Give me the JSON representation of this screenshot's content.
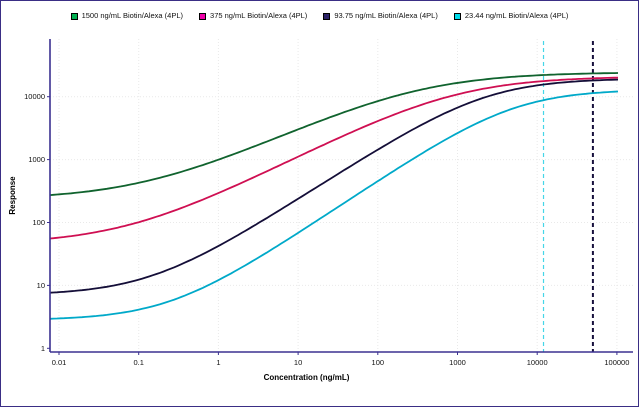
{
  "page": {
    "background": "#ffffff",
    "border_color": "#3a2e85",
    "axis_color": "#3b3191",
    "grid_color": "#e9e9e9",
    "tick_text_color": "#111111"
  },
  "legend": {
    "items": [
      {
        "label": "1500 ng/mL Biotin/Alexa (4PL)",
        "marker_color": "#00b050"
      },
      {
        "label": "375 ng/mL Biotin/Alexa (4PL)",
        "marker_color": "#ee00a8"
      },
      {
        "label": "93.75 ng/mL Biotin/Alexa (4PL)",
        "marker_color": "#2b2268"
      },
      {
        "label": "23.44 ng/mL Biotin/Alexa (4PL)",
        "marker_color": "#00dbea"
      }
    ]
  },
  "axes": {
    "x": {
      "title": "Concentration (ng/mL)",
      "scale": "log",
      "tick_labels": [
        "0.01",
        "0.1",
        "1",
        "10",
        "100",
        "1000",
        "10000",
        "100000"
      ],
      "tick_values": [
        0.01,
        0.1,
        1,
        10,
        100,
        1000,
        10000,
        100000
      ]
    },
    "y": {
      "title": "Response",
      "scale": "log",
      "tick_labels": [
        "1",
        "10",
        "100",
        "1000",
        "10000"
      ],
      "tick_values": [
        1,
        10,
        100,
        1000,
        10000
      ]
    }
  },
  "reference_lines": [
    {
      "name": "upper-limit-line-cyan",
      "value_ng_ml": 12000,
      "color": "#45d6e8",
      "style": "dashed",
      "width": 1.2
    },
    {
      "name": "upper-limit-line-navy",
      "value_ng_ml": 50000,
      "color": "#17103d",
      "style": "dashed",
      "width": 2
    }
  ],
  "chart_data": {
    "type": "line",
    "title": "",
    "xlabel": "Concentration (ng/mL)",
    "ylabel": "Response",
    "x_scale": "log",
    "y_scale": "log",
    "xlim": [
      0.01,
      100000
    ],
    "ylim": [
      1,
      70000
    ],
    "grid": "dotted-major-decades",
    "legend_position": "top-center",
    "x": [
      0.01,
      0.1,
      1,
      10,
      100,
      1000,
      10000,
      100000
    ],
    "series": [
      {
        "name": "1500 ng/mL Biotin/Alexa (4PL)",
        "line_color": "#10632e",
        "marker_color": "#00b050",
        "fit": "4PL",
        "params": {
          "a": 230,
          "d": 24500,
          "c": 300,
          "b": 0.6
        },
        "values": [
          280,
          420,
          800,
          2500,
          9000,
          16500,
          21500,
          23500
        ]
      },
      {
        "name": "375 ng/mL Biotin/Alexa (4PL)",
        "line_color": "#cf0f52",
        "marker_color": "#ee00a8",
        "fit": "4PL",
        "params": {
          "a": 45,
          "d": 21000,
          "c": 900,
          "b": 0.65
        },
        "values": [
          57,
          80,
          290,
          1100,
          4100,
          10800,
          17400,
          20000
        ]
      },
      {
        "name": "93.75 ng/mL Biotin/Alexa (4PL)",
        "line_color": "#140e38",
        "marker_color": "#2b2268",
        "fit": "4PL",
        "params": {
          "a": 7,
          "d": 19500,
          "c": 2200,
          "b": 0.82
        },
        "values": [
          7,
          9,
          30,
          220,
          1400,
          6600,
          15200,
          18700
        ]
      },
      {
        "name": "23.44 ng/mL Biotin/Alexa (4PL)",
        "line_color": "#00a9c9",
        "marker_color": "#00dbea",
        "fit": "4PL",
        "params": {
          "a": 2.8,
          "d": 13000,
          "c": 5000,
          "b": 0.85
        },
        "values": [
          3,
          3.5,
          12,
          60,
          450,
          2700,
          9800,
          12000
        ]
      }
    ]
  }
}
